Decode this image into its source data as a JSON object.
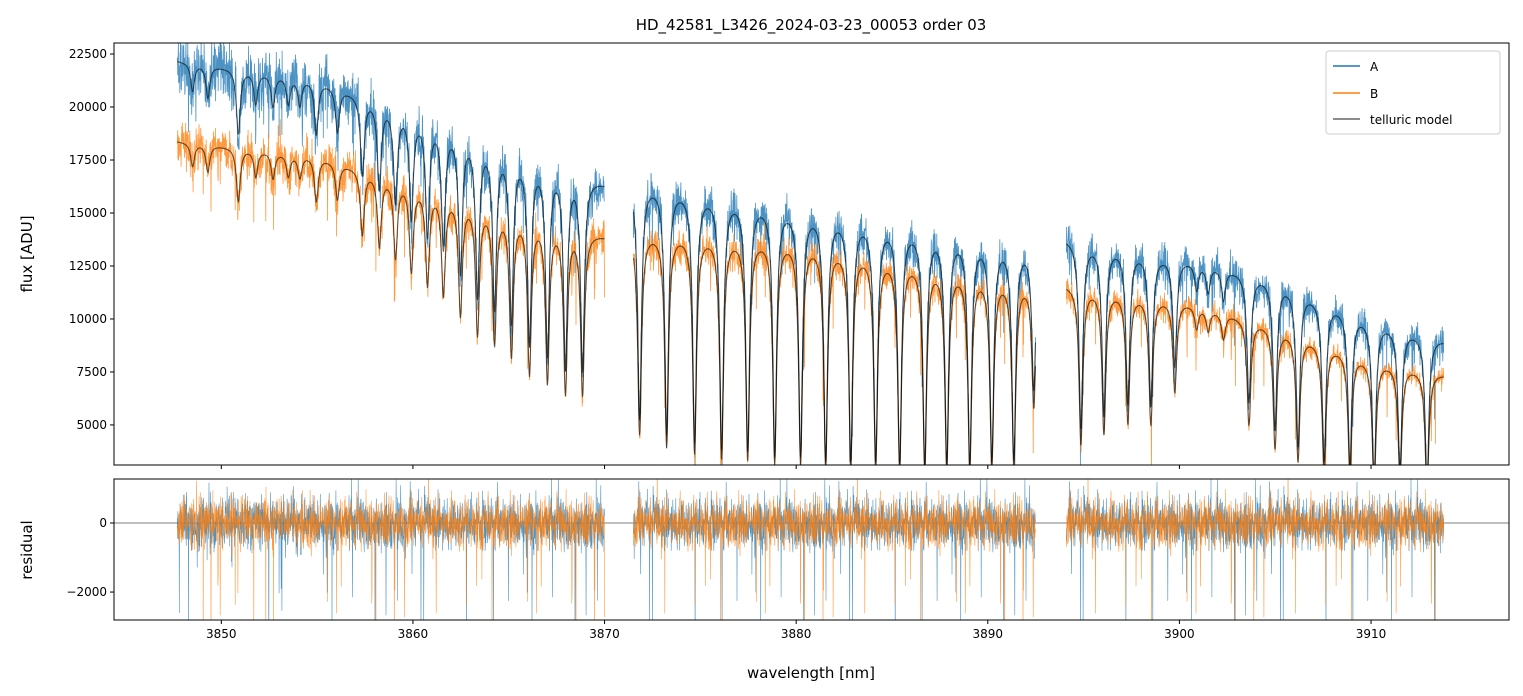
{
  "chart_data": {
    "type": "line",
    "title": "HD_42581_L3426_2024-03-23_00053  order 03",
    "xlabel": "wavelength [nm]",
    "panels": [
      {
        "name": "flux",
        "ylabel": "flux [ADU]",
        "ylim": [
          3110,
          23020
        ],
        "yticks": [
          5000,
          7500,
          10000,
          12500,
          15000,
          17500,
          20000,
          22500
        ],
        "ytick_labels": [
          "5000",
          "7500",
          "10000",
          "12500",
          "15000",
          "17500",
          "20000",
          "22500"
        ]
      },
      {
        "name": "residual",
        "ylabel": "residual",
        "ylim": [
          -2810,
          1275
        ],
        "yticks": [
          -2000,
          0
        ],
        "ytick_labels": [
          "−2000",
          "0"
        ],
        "zero_line": true
      }
    ],
    "xlim": [
      3844.4,
      3917.2
    ],
    "xticks": [
      3850,
      3860,
      3870,
      3880,
      3890,
      3900,
      3910
    ],
    "xtick_labels": [
      "3850",
      "3860",
      "3870",
      "3880",
      "3890",
      "3900",
      "3910"
    ],
    "legend": {
      "placement": "top-right",
      "entries": [
        "A",
        "B",
        "telluric model"
      ]
    },
    "colors": {
      "A": "#1f77b4",
      "B": "#ff7f0e",
      "model": "#000000"
    },
    "segments": [
      [
        3847.7,
        3870.0
      ],
      [
        3871.5,
        3892.5
      ],
      [
        3894.1,
        3913.8
      ]
    ],
    "continuum": {
      "A": [
        [
          3847.7,
          22200
        ],
        [
          3855,
          21300
        ],
        [
          3860,
          19700
        ],
        [
          3865,
          18000
        ],
        [
          3870,
          16500
        ],
        [
          3871.5,
          16600
        ],
        [
          3880,
          15300
        ],
        [
          3892.5,
          13400
        ],
        [
          3894.1,
          13900
        ],
        [
          3900,
          12900
        ],
        [
          3905,
          11900
        ],
        [
          3910,
          10000
        ],
        [
          3913.8,
          9000
        ]
      ],
      "B": [
        [
          3847.7,
          18400
        ],
        [
          3855,
          17700
        ],
        [
          3860,
          16400
        ],
        [
          3865,
          15100
        ],
        [
          3870,
          14000
        ],
        [
          3871.5,
          14200
        ],
        [
          3880,
          13800
        ],
        [
          3892.5,
          11700
        ],
        [
          3894.1,
          11700
        ],
        [
          3900,
          10900
        ],
        [
          3905,
          9700
        ],
        [
          3910,
          8100
        ],
        [
          3913.8,
          7400
        ]
      ]
    },
    "absorption_lines": [
      [
        3848.5,
        0.06
      ],
      [
        3849.3,
        0.07
      ],
      [
        3850.89,
        0.14
      ],
      [
        3851.8,
        0.07
      ],
      [
        3852.7,
        0.07
      ],
      [
        3853.5,
        0.06
      ],
      [
        3854.1,
        0.06
      ],
      [
        3854.96,
        0.12
      ],
      [
        3856.06,
        0.1
      ],
      [
        3857.36,
        0.18
      ],
      [
        3858.25,
        0.2
      ],
      [
        3859.09,
        0.22
      ],
      [
        3859.92,
        0.25
      ],
      [
        3860.76,
        0.28
      ],
      [
        3861.59,
        0.3
      ],
      [
        3862.48,
        0.35
      ],
      [
        3863.37,
        0.4
      ],
      [
        3864.26,
        0.42
      ],
      [
        3865.14,
        0.45
      ],
      [
        3866.08,
        0.5
      ],
      [
        3867.02,
        0.52
      ],
      [
        3867.96,
        0.55
      ],
      [
        3868.85,
        0.55
      ],
      [
        3871.83,
        0.68
      ],
      [
        3873.24,
        0.72
      ],
      [
        3874.7,
        0.74
      ],
      [
        3876.11,
        0.76
      ],
      [
        3877.47,
        0.76
      ],
      [
        3878.88,
        0.77
      ],
      [
        3880.23,
        0.77
      ],
      [
        3881.54,
        0.78
      ],
      [
        3882.85,
        0.78
      ],
      [
        3884.15,
        0.78
      ],
      [
        3885.4,
        0.78
      ],
      [
        3886.71,
        0.78
      ],
      [
        3887.86,
        0.77
      ],
      [
        3889.06,
        0.77
      ],
      [
        3890.21,
        0.76
      ],
      [
        3891.36,
        0.75
      ],
      [
        3892.4,
        0.5
      ],
      [
        3894.86,
        0.65
      ],
      [
        3896.06,
        0.6
      ],
      [
        3897.31,
        0.55
      ],
      [
        3898.51,
        0.55
      ],
      [
        3899.76,
        0.4
      ],
      [
        3900.9,
        0.1
      ],
      [
        3901.5,
        0.1
      ],
      [
        3902.3,
        0.12
      ],
      [
        3903.63,
        0.5
      ],
      [
        3904.99,
        0.6
      ],
      [
        3906.19,
        0.65
      ],
      [
        3907.55,
        0.7
      ],
      [
        3908.9,
        0.7
      ],
      [
        3910.16,
        0.75
      ],
      [
        3911.51,
        0.7
      ],
      [
        3912.92,
        0.75
      ]
    ],
    "line_halfwidth_nm": 0.12,
    "flux_noise_fraction": 0.03,
    "residual_noise_adu": 380
  }
}
